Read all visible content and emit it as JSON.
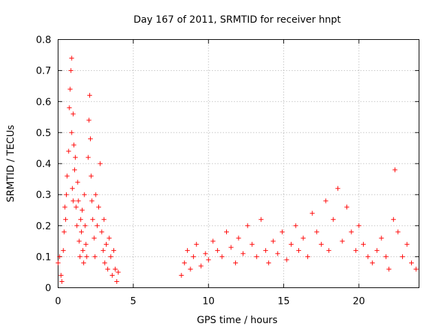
{
  "chart_data": {
    "type": "scatter",
    "title": "Day 167 of 2011, SRMTID for receiver hnpt",
    "xlabel": "GPS time / hours",
    "ylabel": "SRMTID / TECUs",
    "xlim": [
      0,
      24
    ],
    "ylim": [
      0,
      0.8
    ],
    "xticks": [
      0,
      5,
      10,
      15,
      20
    ],
    "xtick_labels": [
      "0",
      "5",
      "10",
      "15",
      "20"
    ],
    "yticks": [
      0,
      0.1,
      0.2,
      0.3,
      0.4,
      0.5,
      0.6,
      0.7,
      0.8
    ],
    "ytick_labels": [
      "0",
      "0.1",
      "0.2",
      "0.3",
      "0.4",
      "0.5",
      "0.6",
      "0.7",
      "0.8"
    ],
    "grid": true,
    "marker": "plus",
    "color": "#ff0000",
    "series": [
      {
        "x": [
          0.0,
          0.1,
          0.2,
          0.25,
          0.35,
          0.4,
          0.45,
          0.5,
          0.55,
          0.6,
          0.7,
          0.75,
          0.8,
          0.85,
          0.9,
          0.9,
          0.95,
          1.0,
          1.0,
          1.05,
          1.1,
          1.15,
          1.2,
          1.25,
          1.3,
          1.35,
          1.4,
          1.45,
          1.5,
          1.55,
          1.6,
          1.65,
          1.7,
          1.75,
          1.8,
          1.85,
          1.9,
          2.0,
          2.05,
          2.1,
          2.15,
          2.2,
          2.25,
          2.3,
          2.4,
          2.45,
          2.5,
          2.6,
          2.7,
          2.8,
          2.9,
          3.0,
          3.05,
          3.1,
          3.2,
          3.3,
          3.4,
          3.5,
          3.6,
          3.7,
          3.8,
          3.9,
          4.0,
          8.2,
          8.4,
          8.6,
          8.8,
          9.0,
          9.2,
          9.5,
          9.8,
          10.0,
          10.3,
          10.6,
          10.9,
          11.2,
          11.5,
          11.8,
          12.0,
          12.3,
          12.6,
          12.9,
          13.2,
          13.5,
          13.8,
          14.0,
          14.3,
          14.6,
          14.9,
          15.2,
          15.5,
          15.8,
          16.0,
          16.3,
          16.6,
          16.9,
          17.2,
          17.5,
          17.8,
          18.0,
          18.3,
          18.6,
          18.9,
          19.2,
          19.5,
          19.8,
          20.0,
          20.3,
          20.6,
          20.9,
          21.2,
          21.5,
          21.8,
          22.0,
          22.3,
          22.4,
          22.6,
          22.9,
          23.2,
          23.5,
          23.8
        ],
        "y": [
          0.08,
          0.1,
          0.04,
          0.02,
          0.12,
          0.18,
          0.26,
          0.22,
          0.3,
          0.36,
          0.44,
          0.58,
          0.64,
          0.7,
          0.74,
          0.5,
          0.32,
          0.28,
          0.56,
          0.46,
          0.38,
          0.42,
          0.26,
          0.2,
          0.34,
          0.28,
          0.15,
          0.1,
          0.22,
          0.18,
          0.25,
          0.12,
          0.08,
          0.3,
          0.2,
          0.14,
          0.1,
          0.42,
          0.54,
          0.62,
          0.48,
          0.36,
          0.28,
          0.22,
          0.16,
          0.1,
          0.3,
          0.2,
          0.26,
          0.4,
          0.18,
          0.12,
          0.22,
          0.08,
          0.14,
          0.06,
          0.16,
          0.1,
          0.04,
          0.12,
          0.06,
          0.02,
          0.05,
          0.04,
          0.08,
          0.12,
          0.06,
          0.1,
          0.14,
          0.07,
          0.11,
          0.09,
          0.15,
          0.12,
          0.1,
          0.18,
          0.13,
          0.08,
          0.16,
          0.11,
          0.2,
          0.14,
          0.1,
          0.22,
          0.12,
          0.08,
          0.15,
          0.11,
          0.18,
          0.09,
          0.14,
          0.2,
          0.12,
          0.16,
          0.1,
          0.24,
          0.18,
          0.14,
          0.28,
          0.12,
          0.22,
          0.32,
          0.15,
          0.26,
          0.18,
          0.12,
          0.2,
          0.14,
          0.1,
          0.08,
          0.12,
          0.16,
          0.1,
          0.06,
          0.22,
          0.38,
          0.18,
          0.1,
          0.14,
          0.08,
          0.06
        ]
      }
    ]
  }
}
